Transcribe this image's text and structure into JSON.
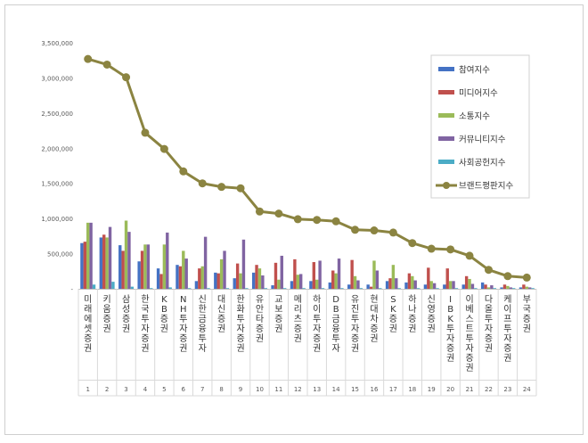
{
  "chart_data": {
    "type": "bar",
    "title": "",
    "xlabel": "",
    "ylabel": "",
    "ylim": [
      0,
      3500000
    ],
    "y_ticks": [
      "-",
      "500,000",
      "1,000,000",
      "1,500,000",
      "2,000,000",
      "2,500,000",
      "3,000,000",
      "3,500,000"
    ],
    "grid": false,
    "legend_position": "top-right",
    "categories": [
      "미래에셋증권",
      "키움증권",
      "삼성증권",
      "한국투자증권",
      "KB증권",
      "NH투자증권",
      "신한금융투자",
      "대신증권",
      "한화투자증권",
      "유안타증권",
      "교보증권",
      "메리츠증권",
      "하이투자증권",
      "DB금융투자",
      "유진투자증권",
      "현대차증권",
      "SK증권",
      "하나증권",
      "신영증권",
      "IBK투자증권",
      "이베스트투자증권",
      "다올투자증권",
      "케이프투자증권",
      "부국증권"
    ],
    "ranks": [
      "1",
      "2",
      "3",
      "4",
      "5",
      "6",
      "7",
      "8",
      "9",
      "10",
      "11",
      "12",
      "13",
      "14",
      "15",
      "16",
      "17",
      "18",
      "19",
      "20",
      "21",
      "22",
      "23",
      "24"
    ],
    "series": [
      {
        "name": "참여지수",
        "kind": "bar",
        "color": "#4472c4",
        "values": [
          650000,
          730000,
          620000,
          390000,
          290000,
          340000,
          110000,
          230000,
          150000,
          230000,
          50000,
          110000,
          110000,
          90000,
          60000,
          60000,
          110000,
          90000,
          60000,
          60000,
          60000,
          90000,
          20000,
          20000
        ]
      },
      {
        "name": "미디어지수",
        "kind": "bar",
        "color": "#c0504d",
        "values": [
          670000,
          770000,
          540000,
          540000,
          210000,
          320000,
          290000,
          220000,
          360000,
          340000,
          370000,
          420000,
          380000,
          260000,
          410000,
          30000,
          150000,
          220000,
          300000,
          290000,
          180000,
          60000,
          60000,
          60000
        ]
      },
      {
        "name": "소통지수",
        "kind": "bar",
        "color": "#9bbb59",
        "values": [
          940000,
          730000,
          970000,
          630000,
          630000,
          540000,
          320000,
          420000,
          220000,
          290000,
          130000,
          200000,
          130000,
          220000,
          180000,
          400000,
          340000,
          180000,
          110000,
          110000,
          140000,
          20000,
          40000,
          30000
        ]
      },
      {
        "name": "커뮤니티지수",
        "kind": "bar",
        "color": "#8064a2",
        "values": [
          940000,
          880000,
          810000,
          630000,
          800000,
          430000,
          740000,
          540000,
          700000,
          190000,
          470000,
          210000,
          400000,
          430000,
          120000,
          260000,
          150000,
          120000,
          80000,
          110000,
          70000,
          50000,
          20000,
          20000
        ]
      },
      {
        "name": "사회공헌지수",
        "kind": "bar",
        "color": "#4bacc6",
        "values": [
          60000,
          100000,
          30000,
          10000,
          20000,
          10000,
          10000,
          10000,
          10000,
          10000,
          10000,
          10000,
          10000,
          10000,
          10000,
          10000,
          10000,
          10000,
          10000,
          10000,
          10000,
          10000,
          10000,
          10000
        ]
      },
      {
        "name": "브랜드평판지수",
        "kind": "line",
        "color": "#8b8441",
        "values": [
          3270000,
          3190000,
          3010000,
          2220000,
          1990000,
          1670000,
          1500000,
          1450000,
          1430000,
          1100000,
          1070000,
          990000,
          980000,
          960000,
          840000,
          830000,
          800000,
          650000,
          570000,
          560000,
          470000,
          270000,
          180000,
          160000
        ]
      }
    ]
  }
}
